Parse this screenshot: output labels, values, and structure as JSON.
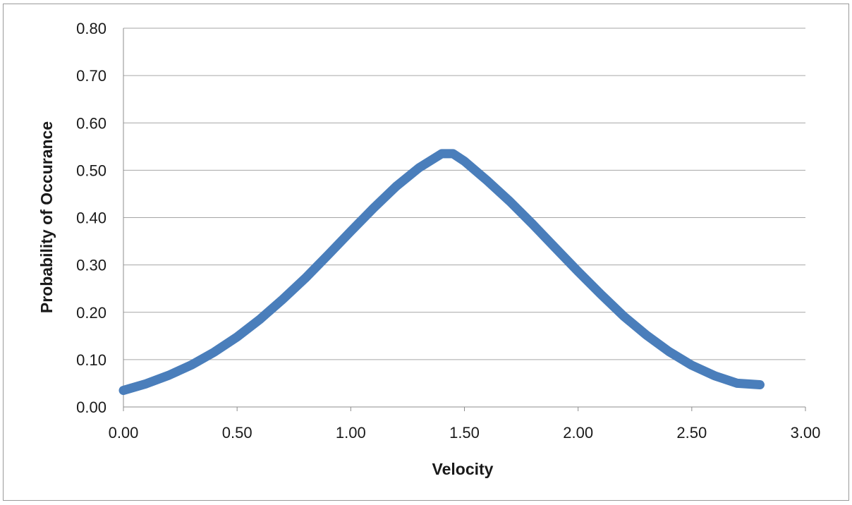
{
  "chart_data": {
    "type": "line",
    "title": "",
    "xlabel": "Velocity",
    "ylabel": "Probability of Occurance",
    "xlim": [
      0,
      3
    ],
    "ylim": [
      0,
      0.8
    ],
    "x_ticks": [
      "0.00",
      "0.50",
      "1.00",
      "1.50",
      "2.00",
      "2.50",
      "3.00"
    ],
    "y_ticks": [
      "0.00",
      "0.10",
      "0.20",
      "0.30",
      "0.40",
      "0.50",
      "0.60",
      "0.70",
      "0.80"
    ],
    "grid": "horizontal",
    "legend": "none",
    "series": [
      {
        "color": "#4a7ebb",
        "x": [
          0.0,
          0.1,
          0.2,
          0.3,
          0.4,
          0.5,
          0.6,
          0.7,
          0.8,
          0.9,
          1.0,
          1.1,
          1.2,
          1.3,
          1.4,
          1.45,
          1.5,
          1.6,
          1.7,
          1.8,
          1.9,
          2.0,
          2.1,
          2.2,
          2.3,
          2.4,
          2.5,
          2.6,
          2.7,
          2.8
        ],
        "y": [
          0.035,
          0.049,
          0.067,
          0.089,
          0.116,
          0.148,
          0.185,
          0.227,
          0.272,
          0.321,
          0.371,
          0.42,
          0.466,
          0.505,
          0.535,
          0.535,
          0.519,
          0.478,
          0.434,
          0.386,
          0.336,
          0.286,
          0.238,
          0.192,
          0.152,
          0.117,
          0.088,
          0.066,
          0.05,
          0.047
        ]
      }
    ]
  }
}
